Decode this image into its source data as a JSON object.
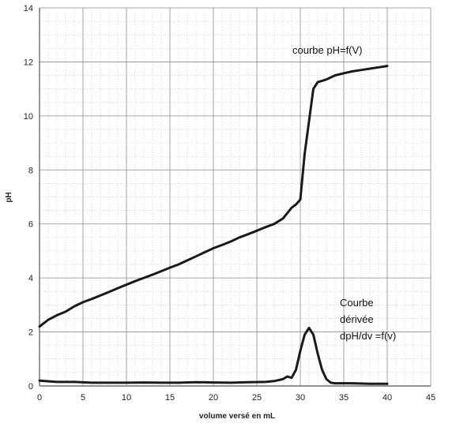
{
  "chart_data": {
    "type": "line",
    "xlabel": "volume versé en mL",
    "ylabel": "pH",
    "xlim": [
      0,
      45
    ],
    "ylim": [
      0,
      14
    ],
    "x_ticks": [
      "0",
      "5",
      "10",
      "15",
      "20",
      "25",
      "30",
      "35",
      "40",
      "45"
    ],
    "y_ticks": [
      "0",
      "2",
      "4",
      "6",
      "8",
      "10",
      "12",
      "14"
    ],
    "grid": true,
    "colors": {
      "line": "#1a1a1a",
      "grid_major": "#8c8c8c",
      "grid_minor": "#c8c8c8",
      "axis": "#555555"
    },
    "annotations": [
      {
        "lines": [
          "courbe pH=f(V)"
        ]
      },
      {
        "lines": [
          "Courbe",
          "dérivée",
          "dpH/dv =f(v)"
        ]
      }
    ],
    "series": [
      {
        "x": [
          0,
          1,
          2,
          3,
          4,
          5,
          6,
          7,
          8,
          9,
          10,
          11,
          12,
          13,
          14,
          15,
          16,
          17,
          18,
          19,
          20,
          21,
          22,
          23,
          24,
          25,
          26,
          27,
          28,
          29,
          29.5,
          30,
          30.5,
          31,
          31.5,
          32,
          32.5,
          33,
          34,
          35,
          36,
          37,
          38,
          39,
          40
        ],
        "y": [
          2.2,
          2.45,
          2.62,
          2.75,
          2.95,
          3.1,
          3.22,
          3.35,
          3.48,
          3.62,
          3.75,
          3.88,
          4.0,
          4.12,
          4.25,
          4.38,
          4.5,
          4.65,
          4.8,
          4.95,
          5.1,
          5.22,
          5.35,
          5.5,
          5.62,
          5.75,
          5.88,
          6.0,
          6.2,
          6.6,
          6.72,
          6.9,
          8.6,
          9.8,
          11.0,
          11.25,
          11.3,
          11.35,
          11.5,
          11.58,
          11.65,
          11.7,
          11.75,
          11.8,
          11.85
        ]
      },
      {
        "x": [
          0,
          2,
          4,
          6,
          8,
          10,
          12,
          14,
          16,
          18,
          20,
          22,
          24,
          26,
          27,
          28,
          28.5,
          29,
          29.5,
          30,
          30.5,
          31,
          31.5,
          32,
          32.5,
          33,
          33.5,
          34,
          35,
          36,
          38,
          40
        ],
        "y": [
          0.2,
          0.15,
          0.15,
          0.12,
          0.12,
          0.12,
          0.13,
          0.12,
          0.12,
          0.14,
          0.13,
          0.12,
          0.14,
          0.15,
          0.18,
          0.25,
          0.35,
          0.3,
          0.6,
          1.3,
          1.9,
          2.15,
          1.9,
          1.2,
          0.6,
          0.25,
          0.12,
          0.1,
          0.1,
          0.1,
          0.08,
          0.08
        ]
      }
    ]
  }
}
